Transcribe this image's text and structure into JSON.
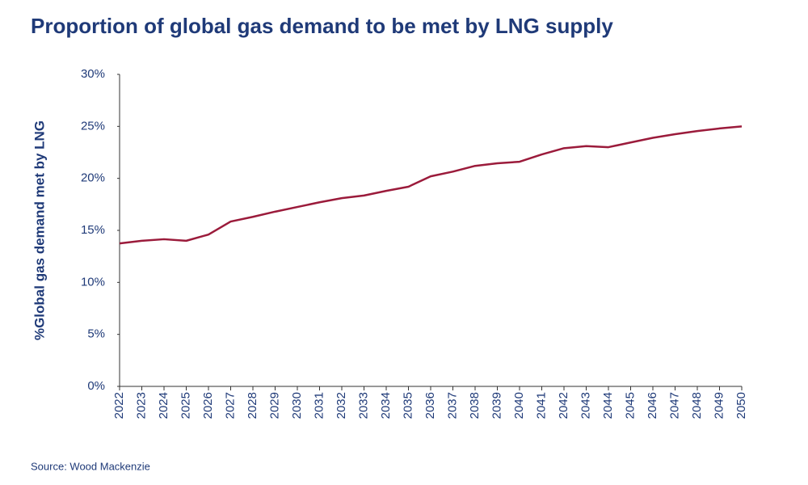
{
  "chart_data": {
    "type": "line",
    "title": "Proportion of global gas demand to be met by LNG supply",
    "y_label": "%Global gas demand met by LNG",
    "source": "Source: Wood Mackenzie",
    "categories": [
      "2022",
      "2023",
      "2024",
      "2025",
      "2026",
      "2027",
      "2028",
      "2029",
      "2030",
      "2031",
      "2032",
      "2033",
      "2034",
      "2035",
      "2036",
      "2037",
      "2038",
      "2039",
      "2040",
      "2041",
      "2042",
      "2043",
      "2044",
      "2045",
      "2046",
      "2047",
      "2048",
      "2049",
      "2050"
    ],
    "series": [
      {
        "name": "%Global gas demand met by LNG",
        "color": "#9b1b3b",
        "values": [
          13.75,
          14.0,
          14.15,
          14.0,
          14.6,
          15.85,
          16.3,
          16.8,
          17.25,
          17.7,
          18.1,
          18.35,
          18.8,
          19.2,
          20.2,
          20.65,
          21.2,
          21.45,
          21.6,
          22.3,
          22.9,
          23.1,
          23.0,
          23.45,
          23.9,
          24.25,
          24.55,
          24.8,
          25.0
        ]
      }
    ],
    "ylim": [
      0,
      30
    ],
    "yticks": [
      {
        "value": 0,
        "label": "0%"
      },
      {
        "value": 5,
        "label": "5%"
      },
      {
        "value": 10,
        "label": "10%"
      },
      {
        "value": 15,
        "label": "15%"
      },
      {
        "value": 20,
        "label": "20%"
      },
      {
        "value": 25,
        "label": "25%"
      },
      {
        "value": 30,
        "label": "30%"
      }
    ],
    "grid": false
  }
}
